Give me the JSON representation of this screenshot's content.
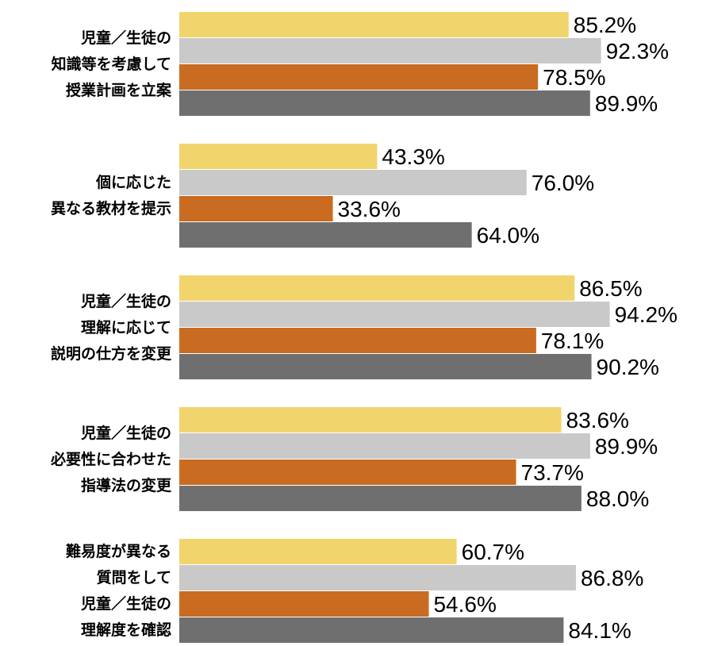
{
  "chart_data": {
    "type": "bar",
    "orientation": "horizontal",
    "categories": [
      "児童／生徒の\n知識等を考慮して\n授業計画を立案",
      "個に応じた\n異なる教材を提示",
      "児童／生徒の\n理解に応じて\n説明の仕方を変更",
      "児童／生徒の\n必要性に合わせた\n指導法の変更",
      "難易度が異なる\n質問をして\n児童／生徒の\n理解度を確認"
    ],
    "series": [
      {
        "color": "#f2d46c",
        "values": [
          85.2,
          43.3,
          86.5,
          83.6,
          60.7
        ],
        "value_labels": [
          "85.2%",
          "43.3%",
          "86.5%",
          "83.6%",
          "60.7%"
        ]
      },
      {
        "color": "#c9c9c9",
        "values": [
          92.3,
          76.0,
          94.2,
          89.9,
          86.8
        ],
        "value_labels": [
          "92.3%",
          "76.0%",
          "94.2%",
          "89.9%",
          "86.8%"
        ]
      },
      {
        "color": "#c96b20",
        "values": [
          78.5,
          33.6,
          78.1,
          73.7,
          54.6
        ],
        "value_labels": [
          "78.5%",
          "33.6%",
          "78.1%",
          "73.7%",
          "54.6%"
        ]
      },
      {
        "color": "#6f6f6f",
        "values": [
          89.9,
          64.0,
          90.2,
          88.0,
          84.1
        ],
        "value_labels": [
          "89.9%",
          "64.0%",
          "90.2%",
          "88.0%",
          "84.1%"
        ]
      }
    ]
  }
}
